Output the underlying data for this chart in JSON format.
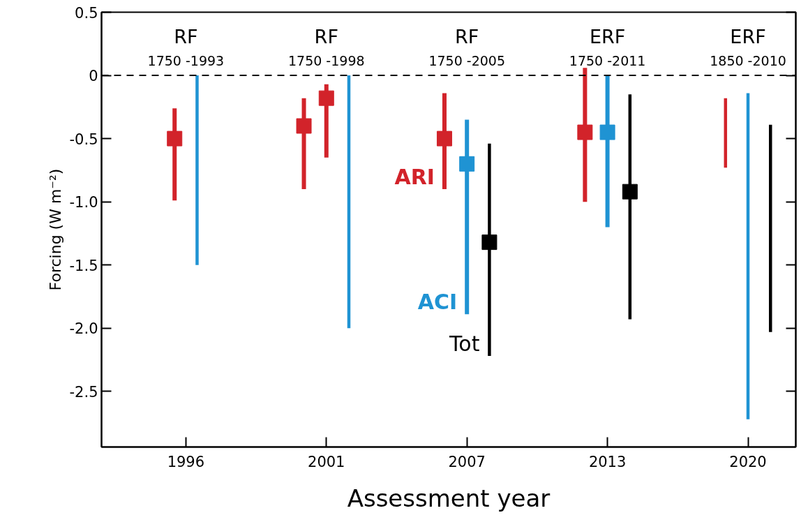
{
  "chart_data": {
    "type": "scatter",
    "xlabel": "Assessment year",
    "ylabel": "Forcing (W m⁻²)",
    "annotations": [
      "RF",
      "1750 -1993",
      "RF",
      "1750 -1998",
      "RF",
      "1750 -2005",
      "ERF",
      "1750 -2011",
      "ERF",
      "1850 -2010"
    ],
    "categories": [
      "1996",
      "2001",
      "2007",
      "2013",
      "2020"
    ],
    "ylim": [
      -2.94,
      0.5
    ],
    "yticks": [
      0.5,
      0,
      -0.5,
      {
        "value": -1.0,
        "label": "-1.0"
      },
      -1.5,
      {
        "value": -2.0,
        "label": "-2.0"
      },
      -2.5
    ],
    "grid": false,
    "marker": "square",
    "ref_lines": [
      {
        "axis": "y",
        "value": 0,
        "label": null,
        "color": "#000000",
        "line_style": "dashed"
      }
    ],
    "series": [
      {
        "name": "ARI",
        "color": "#d2232a",
        "values": [
          -0.5,
          -0.4,
          -0.5,
          -0.45,
          null
        ],
        "errors": [
          [
            -0.99,
            -0.26
          ],
          [
            -0.9,
            -0.18
          ],
          [
            -0.9,
            -0.14
          ],
          [
            -1.0,
            0.06
          ],
          null
        ]
      },
      {
        "color": "#d2232a",
        "values": [
          null,
          -0.18,
          null,
          null,
          null
        ],
        "errors": [
          null,
          [
            -0.65,
            -0.07
          ],
          null,
          null,
          null
        ]
      },
      {
        "type": "bar",
        "color": "#d2232a",
        "base": [
          null,
          null,
          null,
          null,
          -0.73
        ],
        "values": [
          null,
          null,
          null,
          null,
          0.55
        ]
      },
      {
        "name": "ACI",
        "color": "#1f93d3",
        "values": [
          null,
          null,
          -0.7,
          -0.45,
          null
        ],
        "errors": [
          null,
          null,
          [
            -1.89,
            -0.35
          ],
          [
            -1.2,
            0
          ],
          null
        ]
      },
      {
        "type": "bar",
        "color": "#1f93d3",
        "base": [
          -1.5,
          -2.0,
          null,
          null,
          -2.72
        ],
        "values": [
          1.5,
          2.0,
          null,
          null,
          2.58
        ]
      },
      {
        "name": "Tot",
        "color": "#000000",
        "values": [
          null,
          null,
          -1.32,
          -0.92,
          null
        ],
        "errors": [
          null,
          null,
          [
            -2.22,
            -0.54
          ],
          [
            -1.93,
            -0.15
          ],
          null
        ]
      },
      {
        "type": "bar",
        "color": "#000000",
        "base": [
          null,
          null,
          null,
          null,
          -2.03
        ],
        "values": [
          null,
          null,
          null,
          null,
          1.64
        ]
      }
    ]
  }
}
